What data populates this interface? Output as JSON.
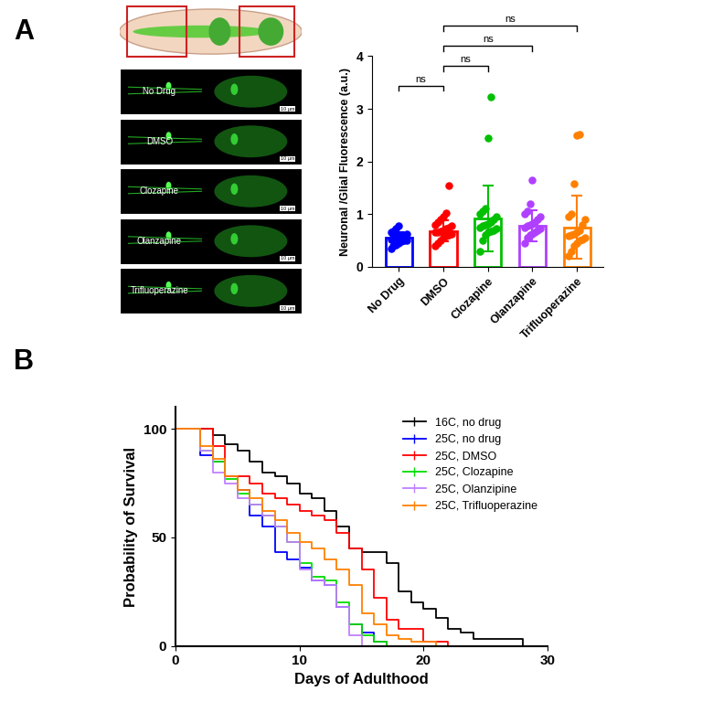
{
  "panel_labels": [
    "A",
    "B"
  ],
  "images": {
    "labels": [
      "No Drug",
      "DMSO",
      "Clozapine",
      "Olanzapine",
      "Trifluoperazine"
    ],
    "scale_bar": "10 µm"
  },
  "chart_data": [
    {
      "type": "bar",
      "y_label": "Neuronal /Glial Fluorescence (a.u.)",
      "categories": [
        "No Drug",
        "DMSO",
        "Clozapine",
        "Olanzapine",
        "Trifluoperazine"
      ],
      "values": [
        0.55,
        0.68,
        0.92,
        0.78,
        0.75
      ],
      "errors": [
        0.1,
        0.2,
        0.62,
        0.3,
        0.6
      ],
      "colors": [
        "#0000ff",
        "#ff0000",
        "#00c000",
        "#b040ff",
        "#ff8000"
      ],
      "points": [
        [
          0.35,
          0.4,
          0.42,
          0.45,
          0.48,
          0.5,
          0.5,
          0.52,
          0.55,
          0.55,
          0.58,
          0.6,
          0.6,
          0.62,
          0.65,
          0.68,
          0.72,
          0.78
        ],
        [
          0.4,
          0.45,
          0.5,
          0.55,
          0.58,
          0.6,
          0.62,
          0.65,
          0.65,
          0.68,
          0.7,
          0.72,
          0.75,
          0.78,
          0.8,
          0.85,
          0.9,
          0.95,
          1.02,
          1.55
        ],
        [
          0.3,
          0.5,
          0.6,
          0.65,
          0.68,
          0.7,
          0.72,
          0.75,
          0.78,
          0.8,
          0.82,
          0.85,
          0.9,
          0.95,
          1.0,
          1.05,
          1.1,
          2.45,
          3.22
        ],
        [
          0.45,
          0.55,
          0.6,
          0.62,
          0.65,
          0.7,
          0.72,
          0.75,
          0.78,
          0.8,
          0.82,
          0.85,
          0.9,
          0.95,
          1.0,
          1.05,
          1.2,
          1.65
        ],
        [
          0.2,
          0.3,
          0.4,
          0.45,
          0.5,
          0.52,
          0.55,
          0.58,
          0.6,
          0.62,
          0.65,
          0.7,
          0.8,
          0.9,
          0.95,
          1.0,
          1.58,
          2.5,
          2.52
        ]
      ],
      "ylim": [
        0,
        4
      ],
      "yticks": [
        0,
        1,
        2,
        3,
        4
      ],
      "annotations": [
        {
          "pair": [
            "No Drug",
            "DMSO"
          ],
          "text": "ns"
        },
        {
          "pair": [
            "DMSO",
            "Clozapine"
          ],
          "text": "ns"
        },
        {
          "pair": [
            "DMSO",
            "Olanzapine"
          ],
          "text": "ns"
        },
        {
          "pair": [
            "DMSO",
            "Trifluoperazine"
          ],
          "text": "ns"
        }
      ]
    },
    {
      "type": "line",
      "x_label": "Days of Adulthood",
      "y_label": "Probability of Survival",
      "line_style": "steps",
      "legend": "upper right",
      "xlim": [
        0,
        30
      ],
      "xticks": [
        0,
        10,
        20,
        30
      ],
      "ylim": [
        0,
        110
      ],
      "yticks": [
        0,
        50,
        100
      ],
      "series": [
        {
          "name": "16C, no drug",
          "color": "#000000",
          "x": [
            0,
            3,
            4,
            5,
            6,
            7,
            8,
            9,
            10,
            11,
            12,
            13,
            14,
            15,
            17,
            18,
            19,
            20,
            21,
            22,
            23,
            24,
            28
          ],
          "values": [
            100,
            97,
            93,
            90,
            85,
            80,
            78,
            75,
            70,
            68,
            62,
            55,
            45,
            43,
            38,
            25,
            20,
            17,
            13,
            8,
            6,
            3,
            0
          ]
        },
        {
          "name": "25C, no drug",
          "color": "#0000ff",
          "x": [
            0,
            2,
            3,
            4,
            5,
            6,
            7,
            8,
            9,
            10,
            11,
            12,
            13,
            14,
            15,
            16,
            17
          ],
          "values": [
            100,
            88,
            85,
            78,
            72,
            60,
            55,
            43,
            40,
            36,
            30,
            28,
            18,
            10,
            6,
            2,
            0
          ]
        },
        {
          "name": "25C, DMSO",
          "color": "#ff0000",
          "x": [
            0,
            3,
            4,
            6,
            7,
            8,
            9,
            10,
            11,
            12,
            13,
            14,
            15,
            16,
            17,
            18,
            20,
            22
          ],
          "values": [
            100,
            92,
            78,
            75,
            70,
            68,
            65,
            62,
            60,
            58,
            52,
            45,
            35,
            22,
            12,
            8,
            2,
            0
          ]
        },
        {
          "name": "25C, Clozapine",
          "color": "#00dd00",
          "x": [
            0,
            2,
            3,
            4,
            5,
            6,
            7,
            8,
            9,
            10,
            11,
            12,
            13,
            14,
            15,
            16,
            17
          ],
          "values": [
            100,
            90,
            85,
            77,
            70,
            65,
            60,
            55,
            48,
            38,
            32,
            30,
            20,
            10,
            5,
            2,
            0
          ]
        },
        {
          "name": "25C, Olanzipine",
          "color": "#c080ff",
          "x": [
            0,
            2,
            3,
            4,
            5,
            6,
            7,
            8,
            9,
            10,
            11,
            12,
            13,
            14,
            15
          ],
          "values": [
            100,
            90,
            80,
            75,
            68,
            65,
            60,
            55,
            48,
            35,
            30,
            28,
            18,
            5,
            0
          ]
        },
        {
          "name": "25C, Trifluoperazine",
          "color": "#ff8000",
          "x": [
            0,
            2,
            3,
            4,
            5,
            6,
            7,
            8,
            9,
            10,
            11,
            12,
            13,
            14,
            15,
            16,
            17,
            18,
            19,
            21
          ],
          "values": [
            100,
            92,
            86,
            78,
            72,
            68,
            62,
            58,
            52,
            48,
            45,
            40,
            35,
            28,
            15,
            10,
            5,
            3,
            2,
            0
          ]
        }
      ]
    }
  ]
}
